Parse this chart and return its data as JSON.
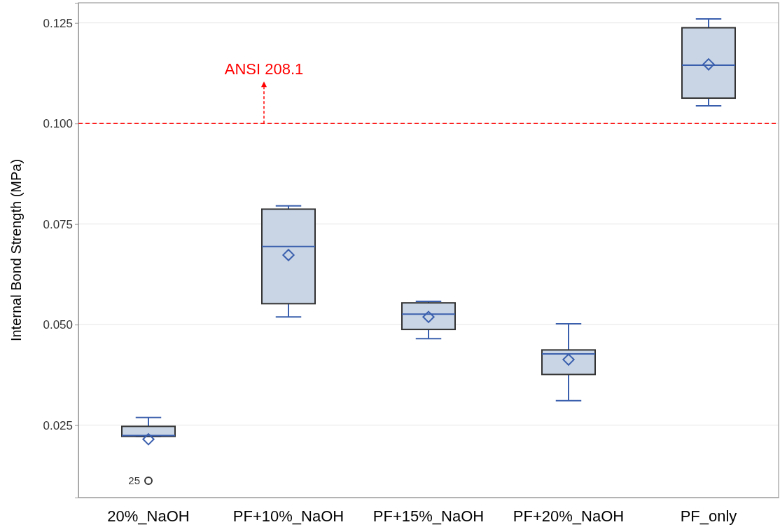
{
  "chart_data": {
    "type": "box",
    "ylabel": "Internal Bond Strength (MPa)",
    "categories": [
      "20%_NaOH",
      "PF+10%_NaOH",
      "PF+15%_NaOH",
      "PF+20%_NaOH",
      "PF_only"
    ],
    "boxes": [
      {
        "low": 0.0222,
        "q1": 0.0222,
        "median": 0.0224,
        "q3": 0.0247,
        "high": 0.0269,
        "mean": 0.0215,
        "outliers": [
          0.0112
        ]
      },
      {
        "low": 0.0519,
        "q1": 0.0552,
        "median": 0.0694,
        "q3": 0.0787,
        "high": 0.0795,
        "mean": 0.0673
      },
      {
        "low": 0.0465,
        "q1": 0.0488,
        "median": 0.0526,
        "q3": 0.0554,
        "high": 0.0558,
        "mean": 0.0519
      },
      {
        "low": 0.0311,
        "q1": 0.0376,
        "median": 0.0427,
        "q3": 0.0437,
        "high": 0.0502,
        "mean": 0.0413
      },
      {
        "low": 0.1044,
        "q1": 0.1063,
        "median": 0.1145,
        "q3": 0.1238,
        "high": 0.126,
        "mean": 0.1147
      }
    ],
    "color": "#c9d5e5",
    "ylim": [
      0.007,
      0.13
    ],
    "yticks": [
      {
        "value": 0.025,
        "label": "0.025"
      },
      {
        "value": 0.05,
        "label": "0.050"
      },
      {
        "value": 0.075,
        "label": "0.075"
      },
      {
        "value": 0.1,
        "label": "0.100"
      },
      {
        "value": 0.125,
        "label": "0.125"
      }
    ],
    "grid": "y",
    "ref_lines": [
      {
        "axis": "y",
        "value": 0.1,
        "label": "ANSI 208.1",
        "color": "#ff0000",
        "line_style": "dashed"
      }
    ],
    "annotations": [
      "25"
    ]
  }
}
